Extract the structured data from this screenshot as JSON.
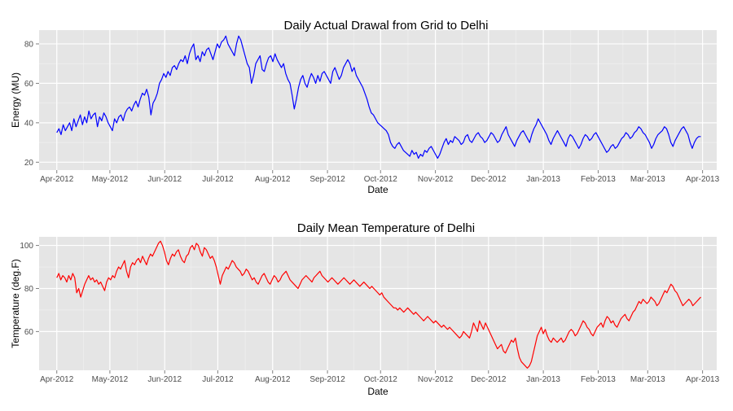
{
  "chart_data": [
    {
      "type": "line",
      "title": "Daily Actual Drawal from Grid to Delhi",
      "xlabel": "Date",
      "ylabel": "Energy (MU)",
      "x_ticks": [
        "Apr-2012",
        "May-2012",
        "Jun-2012",
        "Jul-2012",
        "Aug-2012",
        "Sep-2012",
        "Oct-2012",
        "Nov-2012",
        "Dec-2012",
        "Jan-2013",
        "Feb-2013",
        "Mar-2013",
        "Apr-2013"
      ],
      "y_ticks": [
        20,
        40,
        60,
        80
      ],
      "ylim": [
        16,
        87
      ],
      "grid": true,
      "colors": {
        "line": "#0000ff",
        "panel": "#e5e5e5",
        "grid": "#ffffff"
      },
      "series": [
        {
          "x_start": "2012-04-01",
          "x_end": "2013-03-31",
          "values": [
            35,
            37,
            34,
            39,
            36,
            38,
            40,
            36,
            42,
            38,
            41,
            44,
            39,
            43,
            40,
            46,
            42,
            44,
            45,
            38,
            43,
            41,
            45,
            43,
            40,
            38,
            36,
            42,
            40,
            43,
            44,
            41,
            45,
            47,
            48,
            46,
            49,
            51,
            48,
            52,
            55,
            54,
            57,
            53,
            44,
            50,
            52,
            55,
            60,
            62,
            65,
            63,
            66,
            64,
            68,
            69,
            67,
            70,
            72,
            71,
            74,
            70,
            75,
            78,
            80,
            72,
            74,
            71,
            76,
            74,
            77,
            78,
            75,
            72,
            76,
            80,
            78,
            81,
            82,
            84,
            80,
            78,
            76,
            74,
            80,
            84,
            82,
            78,
            74,
            70,
            68,
            60,
            64,
            70,
            72,
            74,
            67,
            66,
            70,
            73,
            74,
            71,
            75,
            72,
            70,
            68,
            70,
            65,
            62,
            60,
            54,
            47,
            52,
            58,
            62,
            64,
            60,
            58,
            62,
            65,
            63,
            60,
            64,
            61,
            65,
            66,
            64,
            62,
            60,
            66,
            68,
            65,
            62,
            64,
            68,
            70,
            72,
            70,
            66,
            68,
            64,
            62,
            60,
            58,
            55,
            52,
            48,
            45,
            44,
            42,
            40,
            39,
            38,
            37,
            36,
            34,
            30,
            28,
            27,
            29,
            30,
            28,
            26,
            25,
            24,
            23,
            26,
            24,
            25,
            22,
            24,
            23,
            26,
            25,
            27,
            28,
            26,
            24,
            22,
            24,
            27,
            30,
            32,
            29,
            31,
            30,
            33,
            32,
            31,
            29,
            30,
            33,
            34,
            31,
            30,
            32,
            34,
            35,
            33,
            32,
            30,
            31,
            33,
            35,
            34,
            32,
            30,
            31,
            34,
            36,
            38,
            34,
            32,
            30,
            28,
            31,
            33,
            35,
            36,
            34,
            32,
            30,
            34,
            37,
            39,
            42,
            40,
            38,
            36,
            34,
            31,
            29,
            32,
            34,
            36,
            34,
            32,
            30,
            28,
            32,
            34,
            33,
            31,
            29,
            27,
            29,
            32,
            34,
            33,
            31,
            32,
            34,
            35,
            33,
            31,
            29,
            27,
            25,
            26,
            28,
            29,
            27,
            28,
            30,
            32,
            33,
            35,
            34,
            32,
            33,
            35,
            36,
            38,
            37,
            35,
            34,
            32,
            30,
            27,
            29,
            32,
            34,
            35,
            36,
            38,
            37,
            34,
            30,
            28,
            31,
            33,
            35,
            37,
            38,
            36,
            34,
            30,
            27,
            30,
            32,
            33,
            33
          ]
        }
      ]
    },
    {
      "type": "line",
      "title": "Daily Mean Temperature of Delhi",
      "xlabel": "Date",
      "ylabel": "Temperature (deg.F)",
      "x_ticks": [
        "Apr-2012",
        "May-2012",
        "Jun-2012",
        "Jul-2012",
        "Aug-2012",
        "Sep-2012",
        "Oct-2012",
        "Nov-2012",
        "Dec-2012",
        "Jan-2013",
        "Feb-2013",
        "Mar-2013",
        "Apr-2013"
      ],
      "y_ticks": [
        60,
        80,
        100
      ],
      "ylim": [
        42,
        104
      ],
      "grid": true,
      "colors": {
        "line": "#ff0000",
        "panel": "#e5e5e5",
        "grid": "#ffffff"
      },
      "series": [
        {
          "x_start": "2012-04-01",
          "x_end": "2013-03-31",
          "values": [
            85,
            87,
            84,
            86,
            85,
            83,
            86,
            84,
            87,
            85,
            78,
            80,
            76,
            79,
            82,
            84,
            86,
            84,
            85,
            83,
            84,
            82,
            83,
            81,
            79,
            83,
            85,
            84,
            86,
            85,
            88,
            90,
            89,
            91,
            93,
            88,
            85,
            90,
            92,
            91,
            93,
            94,
            92,
            95,
            93,
            91,
            94,
            96,
            95,
            97,
            99,
            101,
            102,
            100,
            97,
            93,
            91,
            94,
            96,
            95,
            97,
            98,
            95,
            93,
            92,
            95,
            96,
            99,
            100,
            98,
            101,
            100,
            97,
            95,
            99,
            98,
            96,
            94,
            95,
            93,
            90,
            86,
            82,
            86,
            88,
            90,
            89,
            91,
            93,
            92,
            90,
            89,
            88,
            86,
            87,
            89,
            88,
            86,
            84,
            85,
            83,
            82,
            84,
            86,
            87,
            85,
            83,
            82,
            84,
            86,
            85,
            83,
            84,
            86,
            87,
            88,
            86,
            84,
            83,
            82,
            81,
            80,
            82,
            84,
            85,
            86,
            85,
            84,
            83,
            85,
            86,
            87,
            88,
            86,
            85,
            84,
            83,
            84,
            85,
            84,
            83,
            82,
            83,
            84,
            85,
            84,
            83,
            82,
            83,
            84,
            83,
            82,
            81,
            82,
            83,
            82,
            81,
            80,
            81,
            80,
            79,
            78,
            77,
            78,
            76,
            75,
            74,
            73,
            72,
            71,
            71,
            70,
            71,
            70,
            69,
            70,
            71,
            70,
            69,
            68,
            69,
            68,
            67,
            66,
            65,
            66,
            67,
            66,
            65,
            64,
            65,
            64,
            63,
            62,
            63,
            62,
            61,
            62,
            61,
            60,
            59,
            58,
            57,
            58,
            60,
            59,
            58,
            57,
            60,
            64,
            62,
            60,
            65,
            63,
            61,
            64,
            62,
            60,
            58,
            56,
            54,
            52,
            53,
            54,
            51,
            50,
            52,
            54,
            56,
            55,
            57,
            52,
            48,
            46,
            45,
            44,
            43,
            44,
            46,
            50,
            54,
            58,
            60,
            62,
            59,
            61,
            58,
            56,
            55,
            57,
            56,
            55,
            56,
            57,
            55,
            56,
            58,
            60,
            61,
            60,
            58,
            59,
            61,
            63,
            65,
            64,
            62,
            61,
            59,
            58,
            60,
            62,
            63,
            64,
            62,
            65,
            67,
            66,
            64,
            65,
            63,
            62,
            64,
            66,
            67,
            68,
            66,
            65,
            67,
            69,
            70,
            72,
            74,
            73,
            75,
            74,
            73,
            74,
            76,
            75,
            74,
            72,
            73,
            75,
            77,
            79,
            78,
            80,
            82,
            81,
            79,
            78,
            76,
            74,
            72,
            73,
            74,
            75,
            74,
            72,
            73,
            74,
            75,
            76
          ]
        }
      ]
    }
  ]
}
